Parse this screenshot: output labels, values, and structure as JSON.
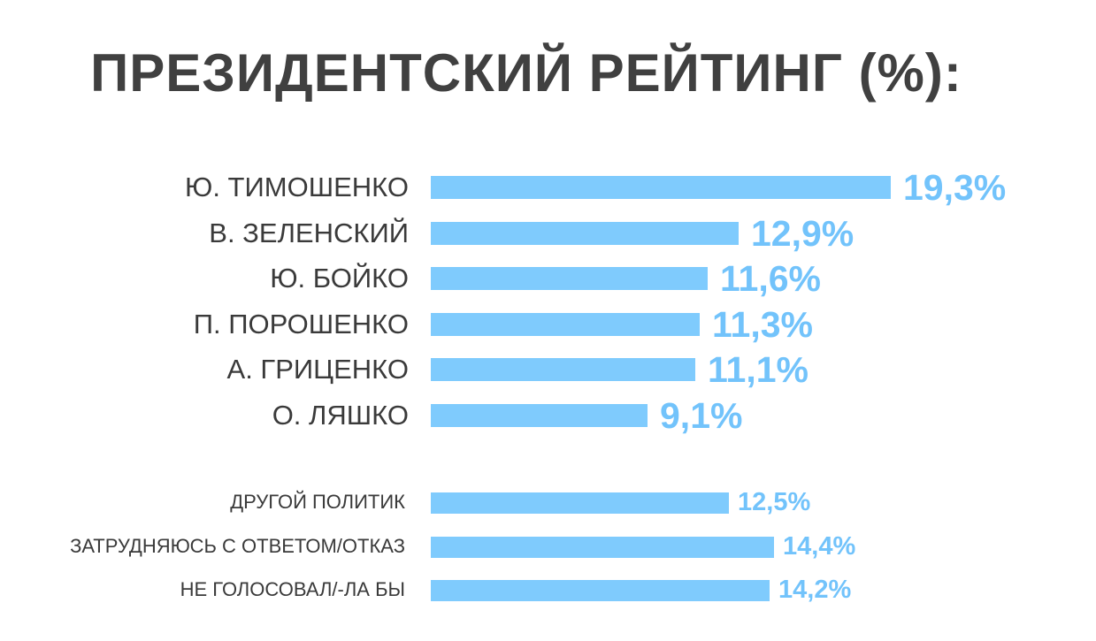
{
  "colors": {
    "bar": "#7fcbfd",
    "value_text": "#72c3fb",
    "title": "#404040",
    "label": "#3a3a3a"
  },
  "chart_data": {
    "type": "bar",
    "orientation": "horizontal",
    "title": "ПРЕЗИДЕНТСКИЙ РЕЙТИНГ (%):",
    "xlim": [
      0,
      19.3
    ],
    "grid": false,
    "groups": [
      {
        "items": [
          {
            "label": "Ю. ТИМОШЕНКО",
            "value": 19.3,
            "value_label": "19,3%"
          },
          {
            "label": "В. ЗЕЛЕНСКИЙ",
            "value": 12.9,
            "value_label": "12,9%"
          },
          {
            "label": "Ю. БОЙКО",
            "value": 11.6,
            "value_label": "11,6%"
          },
          {
            "label": "П. ПОРОШЕНКО",
            "value": 11.3,
            "value_label": "11,3%"
          },
          {
            "label": "А. ГРИЦЕНКО",
            "value": 11.1,
            "value_label": "11,1%"
          },
          {
            "label": "О. ЛЯШКО",
            "value": 9.1,
            "value_label": "9,1%"
          }
        ]
      },
      {
        "items": [
          {
            "label": "ДРУГОЙ ПОЛИТИК",
            "value": 12.5,
            "value_label": "12,5%"
          },
          {
            "label": "ЗАТРУДНЯЮСЬ С ОТВЕТОМ/ОТКАЗ",
            "value": 14.4,
            "value_label": "14,4%"
          },
          {
            "label": "НЕ ГОЛОСОВАЛ/-ЛА БЫ",
            "value": 14.2,
            "value_label": "14,2%"
          }
        ]
      }
    ]
  }
}
